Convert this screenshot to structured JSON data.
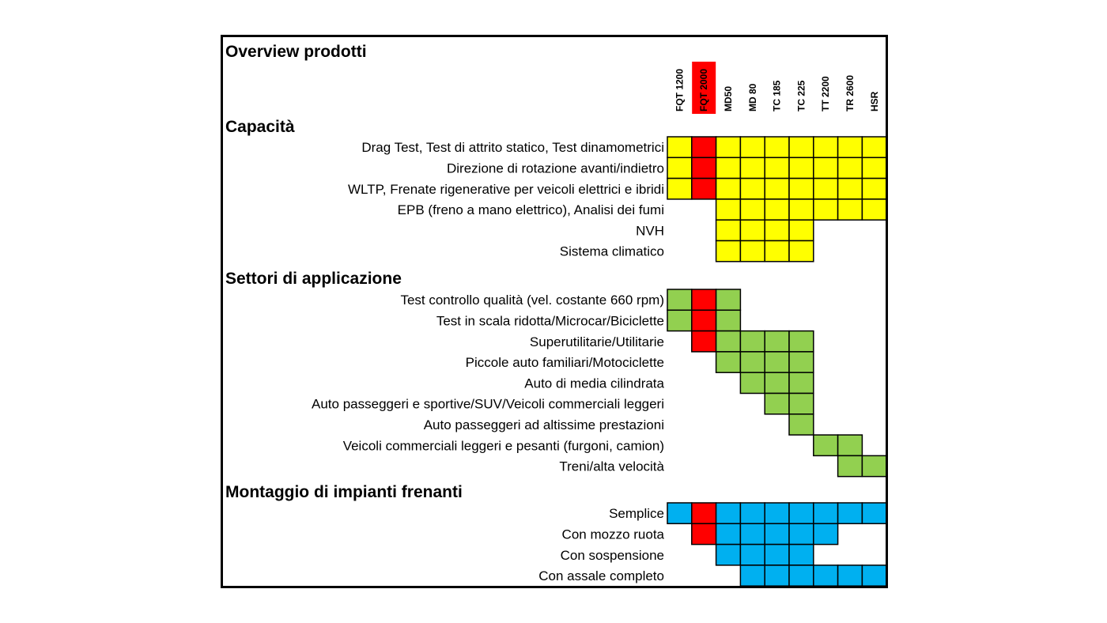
{
  "chart_data": {
    "type": "table",
    "title": "Overview prodotti",
    "columns": [
      "FQT 1200",
      "FQT 2000",
      "MD50",
      "MD 80",
      "TC 185",
      "TC 225",
      "TT 2200",
      "TR 2600",
      "HSR"
    ],
    "highlight_column": "FQT 2000",
    "colors": {
      "yellow": "#ffff00",
      "green": "#92d050",
      "blue": "#00b0f0",
      "red": "#ff0000",
      "border": "#000000"
    },
    "sections": [
      {
        "title": "Capacità",
        "color": "yellow",
        "rows": [
          {
            "label": "Drag Test, Test di attrito statico, Test dinamometrici",
            "cols": [
              "FQT 1200",
              "FQT 2000",
              "MD50",
              "MD 80",
              "TC 185",
              "TC 225",
              "TT 2200",
              "TR 2600",
              "HSR"
            ]
          },
          {
            "label": "Direzione di rotazione avanti/indietro",
            "cols": [
              "FQT 1200",
              "FQT 2000",
              "MD50",
              "MD 80",
              "TC 185",
              "TC 225",
              "TT 2200",
              "TR 2600",
              "HSR"
            ]
          },
          {
            "label": "WLTP, Frenate rigenerative per veicoli elettrici e ibridi",
            "cols": [
              "FQT 1200",
              "FQT 2000",
              "MD50",
              "MD 80",
              "TC 185",
              "TC 225",
              "TT 2200",
              "TR 2600",
              "HSR"
            ]
          },
          {
            "label": "EPB (freno a mano elettrico), Analisi dei fumi",
            "cols": [
              "MD50",
              "MD 80",
              "TC 185",
              "TC 225",
              "TT 2200",
              "TR 2600",
              "HSR"
            ]
          },
          {
            "label": "NVH",
            "cols": [
              "MD50",
              "MD 80",
              "TC 185",
              "TC 225"
            ]
          },
          {
            "label": "Sistema climatico",
            "cols": [
              "MD50",
              "MD 80",
              "TC 185",
              "TC 225"
            ]
          }
        ]
      },
      {
        "title": "Settori di applicazione",
        "color": "green",
        "rows": [
          {
            "label": "Test controllo qualità (vel. costante 660 rpm)",
            "cols": [
              "FQT 1200",
              "FQT 2000",
              "MD50"
            ]
          },
          {
            "label": "Test in scala ridotta/Microcar/Biciclette",
            "cols": [
              "FQT 1200",
              "FQT 2000",
              "MD50"
            ]
          },
          {
            "label": "Superutilitarie/Utilitarie",
            "cols": [
              "FQT 2000",
              "MD50",
              "MD 80",
              "TC 185",
              "TC 225"
            ]
          },
          {
            "label": "Piccole auto familiari/Motociclette",
            "cols": [
              "MD50",
              "MD 80",
              "TC 185",
              "TC 225"
            ]
          },
          {
            "label": "Auto di media cilindrata",
            "cols": [
              "MD 80",
              "TC 185",
              "TC 225"
            ]
          },
          {
            "label": "Auto passeggeri e sportive/SUV/Veicoli commerciali leggeri",
            "cols": [
              "TC 185",
              "TC 225"
            ]
          },
          {
            "label": "Auto passeggeri ad altissime prestazioni",
            "cols": [
              "TC 225"
            ]
          },
          {
            "label": "Veicoli commerciali leggeri e pesanti (furgoni, camion)",
            "cols": [
              "TT 2200",
              "TR 2600"
            ]
          },
          {
            "label": "Treni/alta velocità",
            "cols": [
              "TR 2600",
              "HSR"
            ]
          }
        ]
      },
      {
        "title": "Montaggio di impianti frenanti",
        "color": "blue",
        "rows": [
          {
            "label": "Semplice",
            "cols": [
              "FQT 1200",
              "FQT 2000",
              "MD50",
              "MD 80",
              "TC 185",
              "TC 225",
              "TT 2200",
              "TR 2600",
              "HSR"
            ]
          },
          {
            "label": "Con mozzo ruota",
            "cols": [
              "FQT 2000",
              "MD50",
              "MD 80",
              "TC 185",
              "TC 225",
              "TT 2200"
            ]
          },
          {
            "label": "Con sospensione",
            "cols": [
              "MD50",
              "MD 80",
              "TC 185",
              "TC 225"
            ]
          },
          {
            "label": "Con assale completo",
            "cols": [
              "MD 80",
              "TC 185",
              "TC 225",
              "TT 2200",
              "TR 2600",
              "HSR"
            ]
          }
        ]
      }
    ]
  }
}
